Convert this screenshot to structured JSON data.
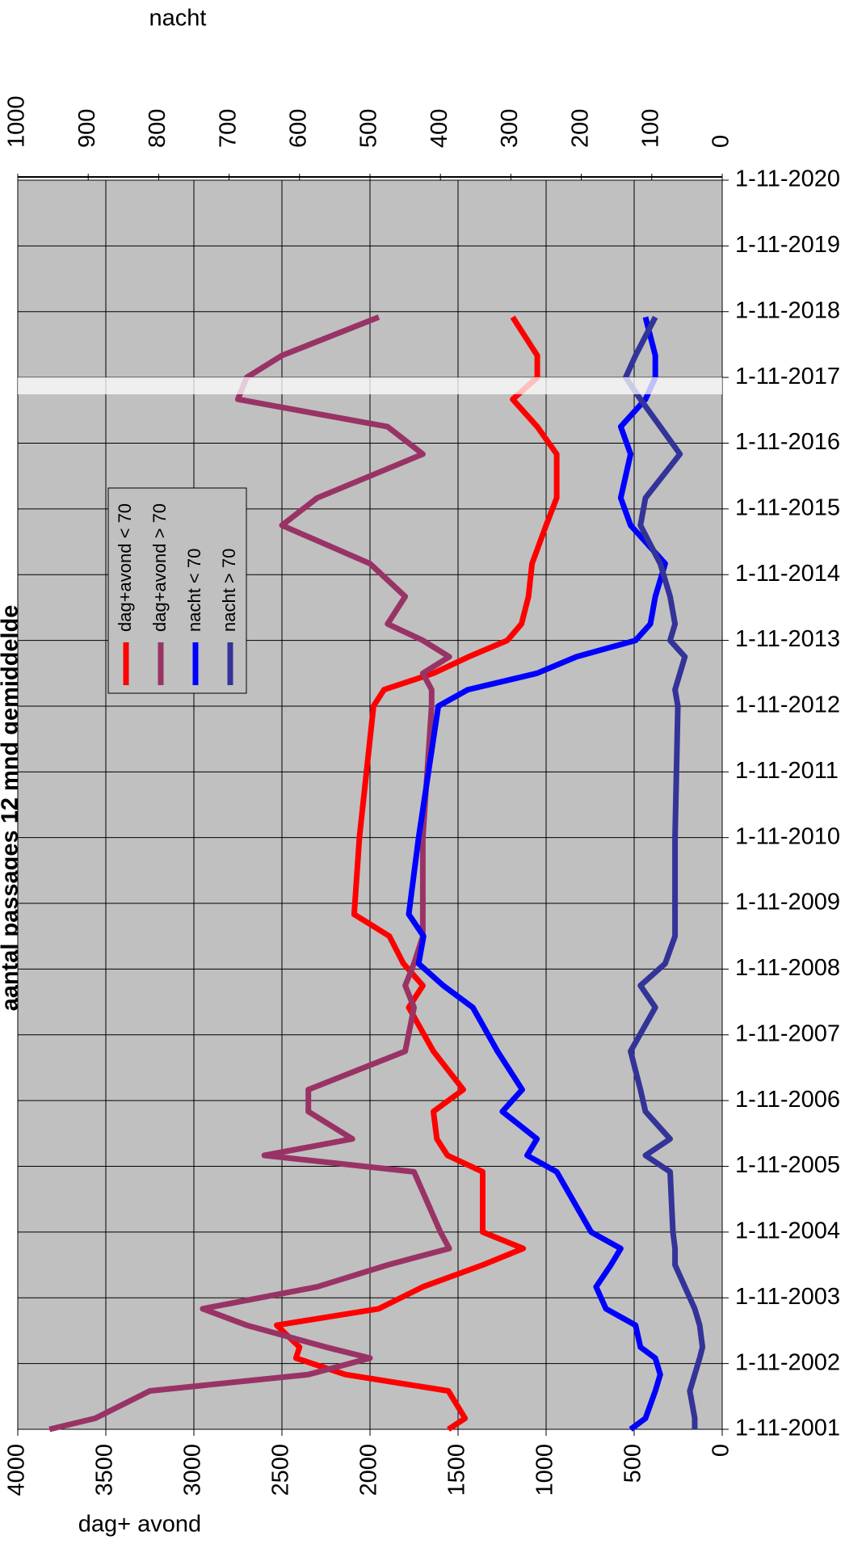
{
  "chart_data": {
    "type": "line",
    "title": "aantal passages 12 mnd gemiddelde",
    "y_label": "dag+ avond",
    "y2_label": "nacht",
    "x": [
      "2001-11",
      "2002-01",
      "2002-06",
      "2002-09",
      "2002-12",
      "2003-02",
      "2003-06",
      "2003-09",
      "2004-01",
      "2004-05",
      "2004-08",
      "2004-11",
      "2005-10",
      "2006-01",
      "2006-04",
      "2006-09",
      "2007-01",
      "2007-08",
      "2008-04",
      "2008-08",
      "2008-12",
      "2009-05",
      "2009-09",
      "2010-11",
      "2012-11",
      "2013-02",
      "2013-05",
      "2013-08",
      "2013-11",
      "2014-02",
      "2014-07",
      "2015-01",
      "2015-08",
      "2016-01",
      "2016-09",
      "2017-02",
      "2017-07",
      "2017-11",
      "2018-03",
      "2018-10"
    ],
    "xlim": [
      "2001-11",
      "2020-11"
    ],
    "xticks": [
      {
        "value": "2001-11",
        "label": "1-11-2001"
      },
      {
        "value": "2002-11",
        "label": "1-11-2002"
      },
      {
        "value": "2003-11",
        "label": "1-11-2003"
      },
      {
        "value": "2004-11",
        "label": "1-11-2004"
      },
      {
        "value": "2005-11",
        "label": "1-11-2005"
      },
      {
        "value": "2006-11",
        "label": "1-11-2006"
      },
      {
        "value": "2007-11",
        "label": "1-11-2007"
      },
      {
        "value": "2008-11",
        "label": "1-11-2008"
      },
      {
        "value": "2009-11",
        "label": "1-11-2009"
      },
      {
        "value": "2010-11",
        "label": "1-11-2010"
      },
      {
        "value": "2011-11",
        "label": "1-11-2011"
      },
      {
        "value": "2012-11",
        "label": "1-11-2012"
      },
      {
        "value": "2013-11",
        "label": "1-11-2013"
      },
      {
        "value": "2014-11",
        "label": "1-11-2014"
      },
      {
        "value": "2015-11",
        "label": "1-11-2015"
      },
      {
        "value": "2016-11",
        "label": "1-11-2016"
      },
      {
        "value": "2017-11",
        "label": "1-11-2017"
      },
      {
        "value": "2018-11",
        "label": "1-11-2018"
      },
      {
        "value": "2019-11",
        "label": "1-11-2019"
      },
      {
        "value": "2020-11",
        "label": "1-11-2020"
      }
    ],
    "ylim": [
      0,
      4000
    ],
    "yticks": [
      0,
      500,
      1000,
      1500,
      2000,
      2500,
      3000,
      3500,
      4000
    ],
    "y2lim": [
      0,
      1000
    ],
    "y2ticks": [
      0,
      100,
      200,
      300,
      400,
      500,
      600,
      700,
      800,
      900,
      1000
    ],
    "grid": true,
    "series": [
      {
        "name": "dag+avond < 70",
        "color": "#ff0000",
        "values": [
          1555,
          1460,
          1555,
          2140,
          2420,
          2400,
          2530,
          1950,
          1700,
          1360,
          1130,
          1360,
          1360,
          1560,
          1620,
          1640,
          1470,
          1640,
          1780,
          1700,
          1810,
          1890,
          2090,
          2060,
          1980,
          1920,
          1640,
          1440,
          1220,
          1140,
          1100,
          1080,
          1000,
          940,
          940,
          1050,
          1190,
          1050,
          1050,
          1190
        ]
      },
      {
        "name": "dag+avond > 70",
        "color": "#993366",
        "values": [
          3820,
          3560,
          3250,
          2350,
          2000,
          2250,
          2700,
          2950,
          2300,
          1900,
          1550,
          1600,
          1750,
          2600,
          2100,
          2350,
          2350,
          1800,
          1750,
          1800,
          1750,
          1700,
          1700,
          1700,
          1650,
          1650,
          1700,
          1550,
          1700,
          1900,
          1800,
          2000,
          2500,
          2300,
          1700,
          1900,
          2750,
          2700,
          2500,
          1950
        ]
      },
      {
        "name": "nacht < 70",
        "color": "#0000ff",
        "axis": "y2",
        "values": [
          130,
          109,
          95,
          88,
          95,
          116,
          123,
          165,
          179,
          158,
          144,
          186,
          235,
          277,
          263,
          312,
          284,
          319,
          354,
          396,
          431,
          424,
          445,
          431,
          403,
          361,
          263,
          207,
          123,
          102,
          95,
          81,
          130,
          144,
          130,
          144,
          109,
          95,
          95,
          109
        ]
      },
      {
        "name": "nacht > 70",
        "color": "#333399",
        "axis": "y2",
        "values": [
          39,
          39,
          46,
          39,
          32,
          28,
          32,
          39,
          53,
          67,
          67,
          70,
          74,
          109,
          74,
          109,
          116,
          130,
          95,
          116,
          81,
          67,
          67,
          67,
          63,
          67,
          60,
          53,
          74,
          67,
          74,
          88,
          116,
          109,
          60,
          88,
          116,
          137,
          123,
          95
        ]
      }
    ]
  }
}
